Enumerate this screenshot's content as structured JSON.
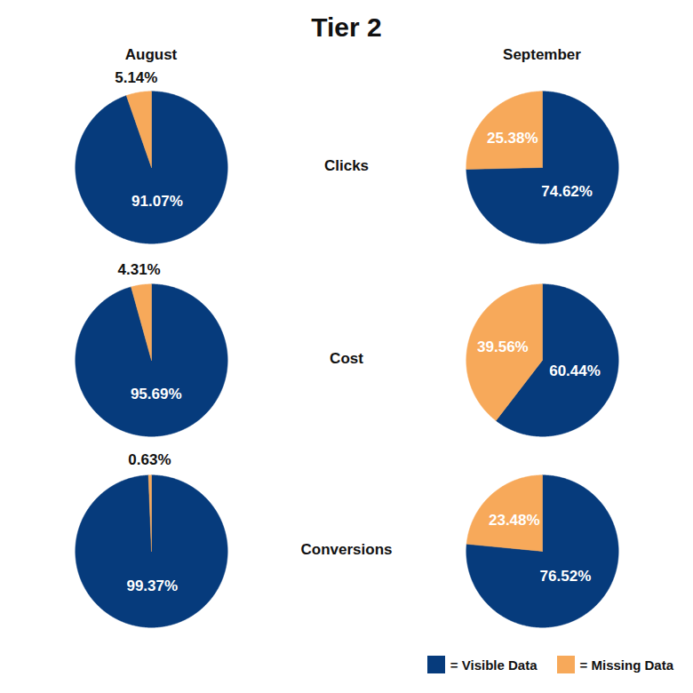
{
  "title": "Tier 2",
  "column_labels": [
    "August",
    "September"
  ],
  "row_labels": [
    "Clicks",
    "Cost",
    "Conversions"
  ],
  "legend": "bottom-right",
  "legend_labels": [
    "= Visible Data",
    "= Missing Data"
  ],
  "chart_data": [
    {
      "type": "pie",
      "categories": [
        "Visible Data",
        "Missing Data"
      ],
      "values": [
        91.07,
        5.14
      ],
      "value_labels": [
        "91.07%",
        "5.14%"
      ],
      "colors": [
        "#063b7c",
        "#f7a95a"
      ],
      "data_labels": true,
      "tick_labels": false
    },
    {
      "type": "pie",
      "categories": [
        "Visible Data",
        "Missing Data"
      ],
      "values": [
        74.62,
        25.38
      ],
      "value_labels": [
        "74.62%",
        "25.38%"
      ],
      "colors": [
        "#063b7c",
        "#f7a95a"
      ],
      "data_labels": true,
      "tick_labels": false
    },
    {
      "type": "pie",
      "categories": [
        "Visible Data",
        "Missing Data"
      ],
      "values": [
        95.69,
        4.31
      ],
      "value_labels": [
        "95.69%",
        "4.31%"
      ],
      "colors": [
        "#063b7c",
        "#f7a95a"
      ],
      "data_labels": true,
      "tick_labels": false
    },
    {
      "type": "pie",
      "categories": [
        "Visible Data",
        "Missing Data"
      ],
      "values": [
        60.44,
        39.56
      ],
      "value_labels": [
        "60.44%",
        "39.56%"
      ],
      "colors": [
        "#063b7c",
        "#f7a95a"
      ],
      "data_labels": true,
      "tick_labels": false
    },
    {
      "type": "pie",
      "categories": [
        "Visible Data",
        "Missing Data"
      ],
      "values": [
        99.37,
        0.63
      ],
      "value_labels": [
        "99.37%",
        "0.63%"
      ],
      "colors": [
        "#063b7c",
        "#f7a95a"
      ],
      "data_labels": true,
      "tick_labels": false
    },
    {
      "type": "pie",
      "categories": [
        "Visible Data",
        "Missing Data"
      ],
      "values": [
        76.52,
        23.48
      ],
      "value_labels": [
        "76.52%",
        "23.48%"
      ],
      "colors": [
        "#063b7c",
        "#f7a95a"
      ],
      "data_labels": true,
      "tick_labels": false
    }
  ]
}
